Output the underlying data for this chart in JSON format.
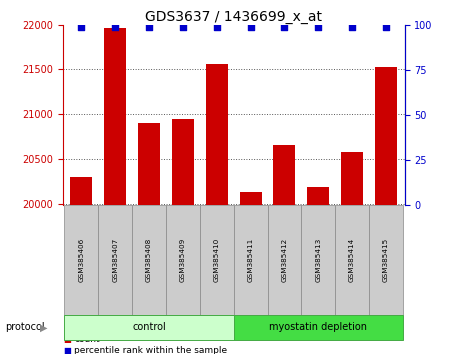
{
  "title": "GDS3637 / 1436699_x_at",
  "samples": [
    "GSM385406",
    "GSM385407",
    "GSM385408",
    "GSM385409",
    "GSM385410",
    "GSM385411",
    "GSM385412",
    "GSM385413",
    "GSM385414",
    "GSM385415"
  ],
  "counts": [
    20300,
    21960,
    20900,
    20950,
    21560,
    20130,
    20660,
    20190,
    20580,
    21530
  ],
  "percentile_ranks": [
    99,
    99,
    99,
    99,
    99,
    99,
    99,
    99,
    99,
    99
  ],
  "ylim_left": [
    19980,
    22000
  ],
  "ylim_right": [
    0,
    100
  ],
  "yticks_left": [
    20000,
    20500,
    21000,
    21500,
    22000
  ],
  "yticks_right": [
    0,
    25,
    50,
    75,
    100
  ],
  "bar_color": "#cc0000",
  "scatter_color": "#0000cc",
  "groups": [
    {
      "label": "control",
      "indices": [
        0,
        1,
        2,
        3,
        4
      ],
      "color": "#ccffcc",
      "border_color": "#44aa44"
    },
    {
      "label": "myostatin depletion",
      "indices": [
        5,
        6,
        7,
        8,
        9
      ],
      "color": "#44dd44",
      "border_color": "#44aa44"
    }
  ],
  "protocol_label": "protocol",
  "legend_count_label": "count",
  "legend_percentile_label": "percentile rank within the sample",
  "title_fontsize": 10,
  "tick_label_fontsize": 7,
  "background_color": "#ffffff",
  "tick_color_left": "#cc0000",
  "tick_color_right": "#0000cc",
  "grid_color": "#555555",
  "sample_box_color": "#cccccc",
  "sample_box_border": "#888888"
}
